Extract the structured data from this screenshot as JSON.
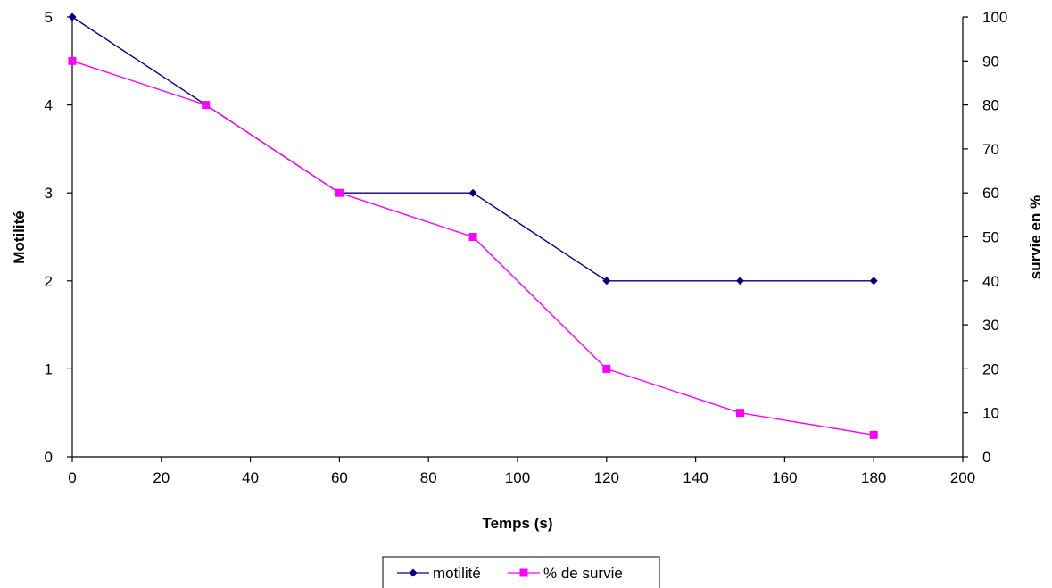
{
  "chart_data": {
    "type": "line",
    "xlabel": "Temps (s)",
    "ylabel_left": "Motilité",
    "ylabel_right": "survie en %",
    "xlim": [
      0,
      200
    ],
    "xticks": [
      0,
      20,
      40,
      60,
      80,
      100,
      120,
      140,
      160,
      180,
      200
    ],
    "ylim_left": [
      0,
      5
    ],
    "yticks_left": [
      0,
      1,
      2,
      3,
      4,
      5
    ],
    "ylim_right": [
      0,
      100
    ],
    "yticks_right": [
      0,
      10,
      20,
      30,
      40,
      50,
      60,
      70,
      80,
      90,
      100
    ],
    "grid": false,
    "legend_position": "bottom-center",
    "series": [
      {
        "name": "motilité",
        "axis": "left",
        "color": "#000080",
        "marker": "diamond",
        "x": [
          0,
          30,
          60,
          90,
          120,
          150,
          180
        ],
        "y": [
          5,
          4,
          3,
          3,
          2,
          2,
          2
        ]
      },
      {
        "name": "% de survie",
        "axis": "right",
        "color": "#ff00ff",
        "marker": "square",
        "x": [
          0,
          30,
          60,
          90,
          120,
          150,
          180
        ],
        "y": [
          90,
          80,
          60,
          50,
          20,
          10,
          5
        ]
      }
    ]
  }
}
